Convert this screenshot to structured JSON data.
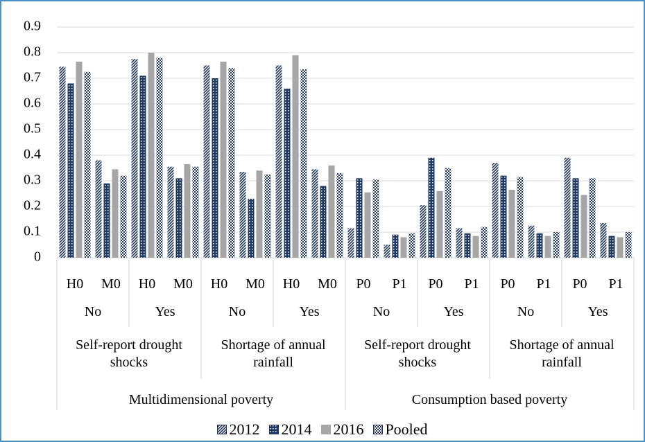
{
  "chart_data": {
    "type": "bar",
    "categories": [
      "H0",
      "M0",
      "H0",
      "M0",
      "H0",
      "M0",
      "H0",
      "M0",
      "P0",
      "P1",
      "P0",
      "P1",
      "P0",
      "P1",
      "P0",
      "P1"
    ],
    "group_levels": [
      [
        "No",
        "Yes",
        "No",
        "Yes",
        "No",
        "Yes",
        "No",
        "Yes"
      ],
      [
        "Self-report drought shocks",
        "Shortage of annual rainfall",
        "Self-report drought shocks",
        "Shortage of annual rainfall"
      ],
      [
        "Multidimensional poverty",
        "Consumption based poverty"
      ]
    ],
    "series": [
      {
        "name": "2012",
        "color": "#1f3864",
        "pattern": "diagonal",
        "values": [
          0.745,
          0.38,
          0.775,
          0.355,
          0.75,
          0.335,
          0.75,
          0.345,
          0.115,
          0.05,
          0.205,
          0.115,
          0.37,
          0.125,
          0.39,
          0.135
        ]
      },
      {
        "name": "2014",
        "color": "#1f3864",
        "pattern": "dots",
        "values": [
          0.68,
          0.29,
          0.71,
          0.31,
          0.7,
          0.23,
          0.66,
          0.28,
          0.31,
          0.09,
          0.39,
          0.095,
          0.32,
          0.095,
          0.31,
          0.085
        ]
      },
      {
        "name": "2016",
        "color": "#a6a6a6",
        "pattern": "solid",
        "values": [
          0.765,
          0.345,
          0.8,
          0.365,
          0.765,
          0.34,
          0.79,
          0.36,
          0.255,
          0.08,
          0.26,
          0.085,
          0.265,
          0.085,
          0.245,
          0.08
        ]
      },
      {
        "name": "Pooled",
        "color": "#1f3864",
        "pattern": "checker",
        "values": [
          0.725,
          0.32,
          0.78,
          0.355,
          0.74,
          0.325,
          0.735,
          0.33,
          0.305,
          0.095,
          0.35,
          0.12,
          0.315,
          0.1,
          0.31,
          0.1
        ]
      }
    ],
    "ylim": [
      0,
      0.9
    ],
    "yticks": [
      0,
      0.1,
      0.2,
      0.3,
      0.4,
      0.5,
      0.6,
      0.7,
      0.8,
      0.9
    ],
    "grid": true,
    "legend": "bottom"
  }
}
